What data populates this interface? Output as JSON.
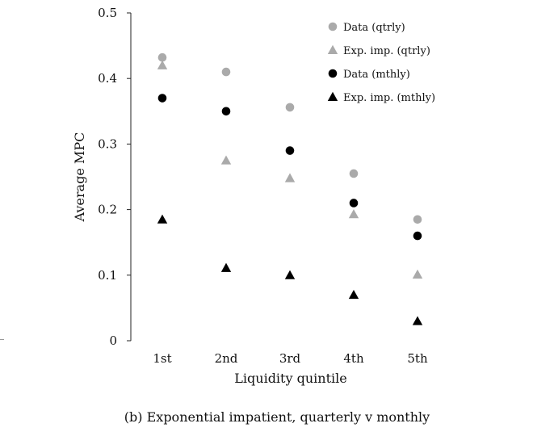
{
  "chart_data": {
    "type": "scatter",
    "categories": [
      "1st",
      "2nd",
      "3rd",
      "4th",
      "5th"
    ],
    "xlabel": "Liquidity quintile",
    "ylabel": "Average MPC",
    "ylim": [
      0,
      0.5
    ],
    "yticks": [
      "0",
      "0.1",
      "0.2",
      "0.3",
      "0.4",
      "0.5"
    ],
    "grid": false,
    "legend_position": "top-right",
    "series": [
      {
        "name": "Data (qtrly)",
        "marker": "circle",
        "color": "#aaaaaa",
        "values": [
          0.432,
          0.41,
          0.356,
          0.255,
          0.185
        ]
      },
      {
        "name": "Exp. imp. (qtrly)",
        "marker": "triangle",
        "color": "#aaaaaa",
        "values": [
          0.42,
          0.275,
          0.248,
          0.193,
          0.101
        ]
      },
      {
        "name": "Data (mthly)",
        "marker": "circle",
        "color": "#000000",
        "values": [
          0.37,
          0.35,
          0.29,
          0.21,
          0.16
        ]
      },
      {
        "name": "Exp. imp. (mthly)",
        "marker": "triangle",
        "color": "#000000",
        "values": [
          0.185,
          0.111,
          0.1,
          0.07,
          0.03
        ]
      }
    ]
  },
  "caption": "(b) Exponential impatient, quarterly v monthly"
}
